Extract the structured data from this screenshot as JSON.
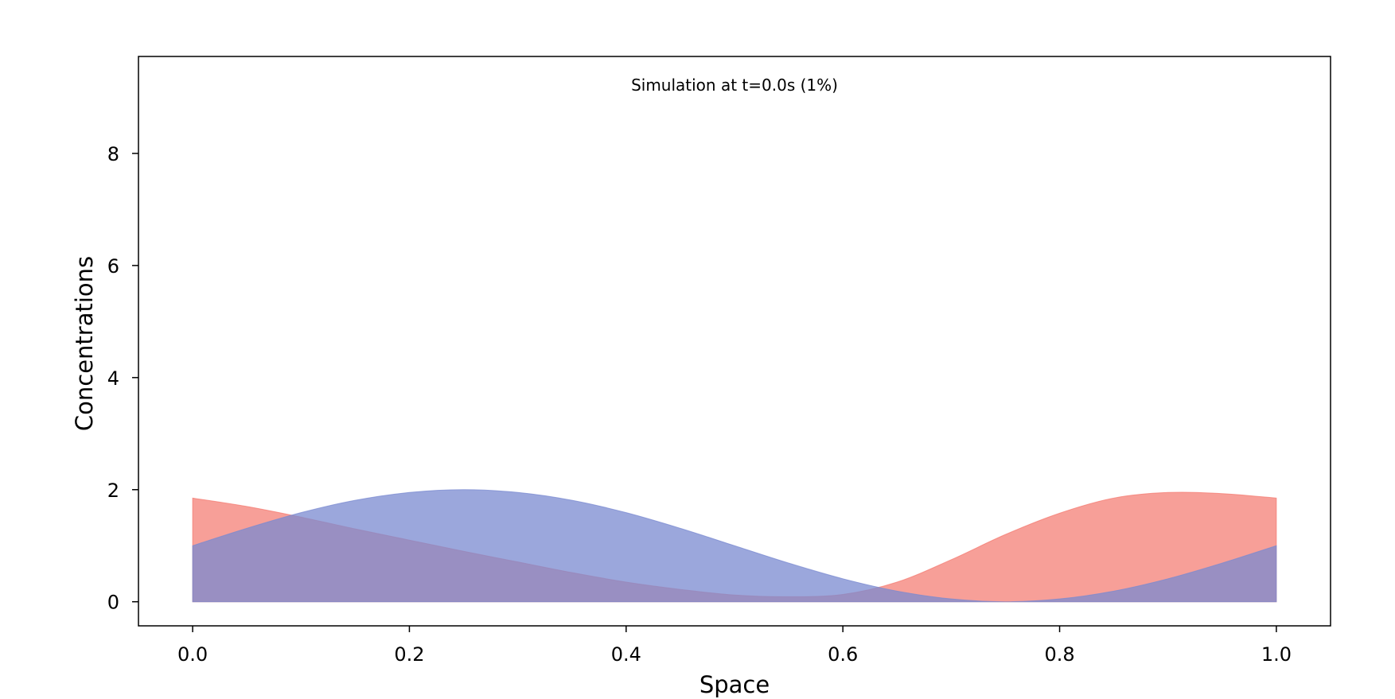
{
  "chart_data": {
    "type": "area",
    "title": "Simulation at t=0.0s (1%)",
    "xlabel": "Space",
    "ylabel": "Concentrations",
    "xlim": [
      -0.05,
      1.05
    ],
    "ylim": [
      -0.43,
      9.73
    ],
    "xticks": [
      0.0,
      0.2,
      0.4,
      0.6,
      0.8,
      1.0
    ],
    "xtick_labels": [
      "0.0",
      "0.2",
      "0.4",
      "0.6",
      "0.8",
      "1.0"
    ],
    "yticks": [
      0,
      2,
      4,
      6,
      8
    ],
    "ytick_labels": [
      "0",
      "2",
      "4",
      "6",
      "8"
    ],
    "grid": false,
    "legend": "none",
    "series": [
      {
        "color": "#F4766C",
        "opacity": 0.7,
        "x": [
          0.0,
          0.05,
          0.1,
          0.15,
          0.2,
          0.25,
          0.3,
          0.35,
          0.4,
          0.45,
          0.5,
          0.55,
          0.6,
          0.65,
          0.7,
          0.75,
          0.8,
          0.85,
          0.9,
          0.95,
          1.0
        ],
        "y": [
          1.85,
          1.7,
          1.51,
          1.3,
          1.1,
          0.9,
          0.71,
          0.52,
          0.35,
          0.22,
          0.12,
          0.09,
          0.13,
          0.35,
          0.75,
          1.2,
          1.58,
          1.85,
          1.95,
          1.93,
          1.85
        ]
      },
      {
        "color": "#7A8AD0",
        "opacity": 0.75,
        "x": [
          0.0,
          0.05,
          0.1,
          0.15,
          0.2,
          0.25,
          0.3,
          0.35,
          0.4,
          0.45,
          0.5,
          0.55,
          0.6,
          0.65,
          0.7,
          0.75,
          0.8,
          0.85,
          0.9,
          0.95,
          1.0
        ],
        "y": [
          1.0,
          1.31,
          1.59,
          1.81,
          1.95,
          2.0,
          1.95,
          1.81,
          1.59,
          1.31,
          1.0,
          0.69,
          0.41,
          0.19,
          0.05,
          0.0,
          0.05,
          0.19,
          0.41,
          0.69,
          1.0
        ]
      }
    ]
  }
}
